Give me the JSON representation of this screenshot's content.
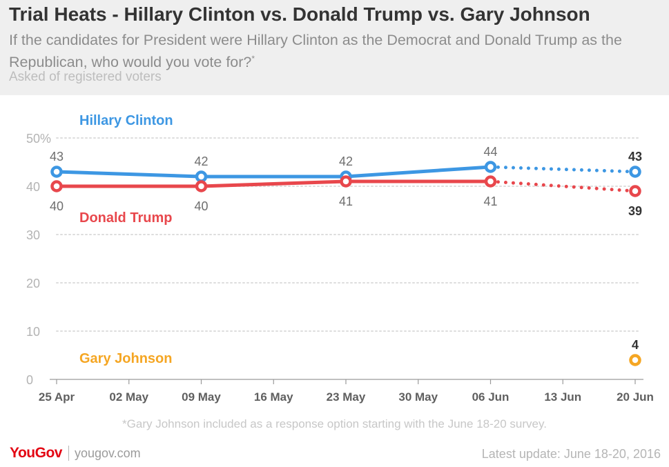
{
  "header": {
    "title": "Trial Heats - Hillary Clinton vs. Donald Trump vs. Gary Johnson",
    "subtitle": "If the candidates for President were Hillary Clinton as the Democrat and Donald Trump as the Republican, who would you vote for?",
    "subtitle_mark": "*",
    "note": "Asked of registered voters"
  },
  "chart_data": {
    "type": "line",
    "title": "Trial Heats - Hillary Clinton vs. Donald Trump vs. Gary Johnson",
    "xlabel": "",
    "ylabel": "",
    "ylim": [
      0,
      50
    ],
    "y_ticks": [
      0,
      10,
      20,
      30,
      40,
      50
    ],
    "y_tick_labels": [
      "0",
      "10",
      "20",
      "30",
      "40",
      "50%"
    ],
    "x_ticks": [
      "25 Apr",
      "02 May",
      "09 May",
      "16 May",
      "23 May",
      "30 May",
      "06 Jun",
      "13 Jun",
      "20 Jun"
    ],
    "grid": true,
    "series": [
      {
        "name": "Hillary Clinton",
        "color": "#3d97e3",
        "label_bold": "#333333",
        "points": [
          {
            "x": "25 Apr",
            "y": 43
          },
          {
            "x": "09 May",
            "y": 42
          },
          {
            "x": "23 May",
            "y": 42
          },
          {
            "x": "06 Jun",
            "y": 44
          },
          {
            "x": "20 Jun",
            "y": 43
          }
        ],
        "label_position": "above"
      },
      {
        "name": "Donald Trump",
        "color": "#e8474c",
        "points": [
          {
            "x": "25 Apr",
            "y": 40
          },
          {
            "x": "09 May",
            "y": 40
          },
          {
            "x": "23 May",
            "y": 41
          },
          {
            "x": "06 Jun",
            "y": 41
          },
          {
            "x": "20 Jun",
            "y": 39
          }
        ],
        "label_position": "below"
      },
      {
        "name": "Gary Johnson",
        "color": "#f5a623",
        "points": [
          {
            "x": "20 Jun",
            "y": 4
          }
        ],
        "label_position": "above"
      }
    ],
    "dotted_last_segment": true,
    "footnote": "*Gary Johnson included as a response option starting with the June 18-20 survey."
  },
  "colors": {
    "axis_text": "#b3b3b3",
    "value_text": "#6e6e6e",
    "value_text_latest": "#333333",
    "grid": "#dddddd",
    "header_bg": "#efefef"
  },
  "footer": {
    "logo_text": "YouGov",
    "site": "yougov.com",
    "update": "Latest update: June 18-20, 2016"
  }
}
